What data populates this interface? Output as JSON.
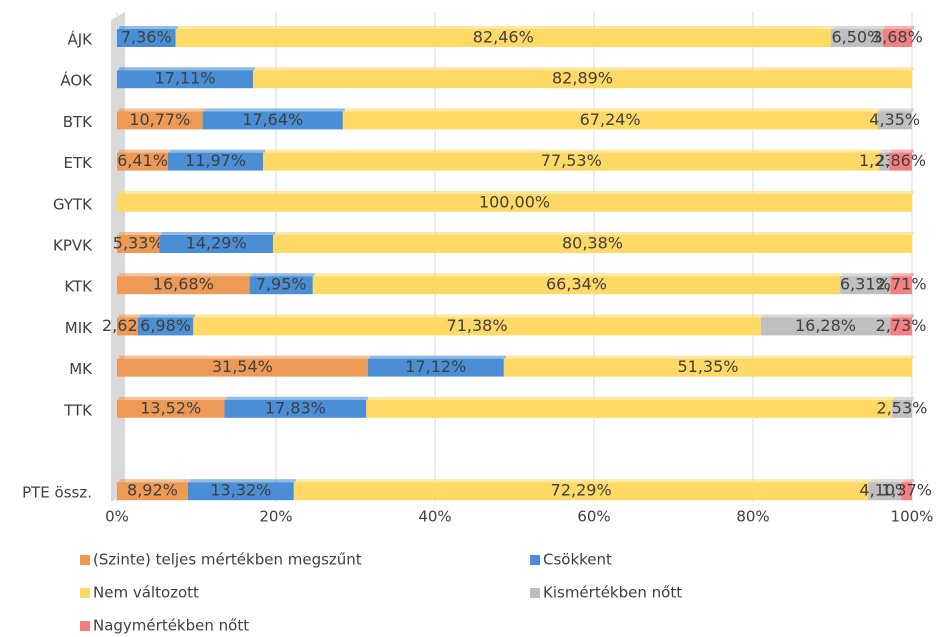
{
  "chart_data": {
    "type": "stacked_bar_horizontal",
    "categories": [
      "ÁJK",
      "ÁOK",
      "BTK",
      "ETK",
      "GYTK",
      "KPVK",
      "KTK",
      "MIK",
      "MK",
      "TTK",
      null,
      "PTE össz."
    ],
    "series": [
      {
        "name": "(Szinte) teljes mértékben megszűnt",
        "color": "#ed9a56",
        "values": [
          0,
          0,
          10.77,
          6.41,
          0,
          5.33,
          16.68,
          2.62,
          31.54,
          13.52,
          null,
          8.92
        ],
        "value_labels": [
          null,
          null,
          "10,77%",
          "6,41%",
          null,
          "5,33%",
          "16,68%",
          "2,62%",
          "31,54%",
          "13,52%",
          null,
          "8,92%"
        ]
      },
      {
        "name": "Csökkent",
        "color": "#4a8fd6",
        "values": [
          7.36,
          17.11,
          17.64,
          11.97,
          0,
          14.29,
          7.95,
          6.98,
          17.12,
          17.83,
          null,
          13.32
        ],
        "value_labels": [
          "7,36%",
          "17,11%",
          "17,64%",
          "11,97%",
          null,
          "14,29%",
          "7,95%",
          "6,98%",
          "17,12%",
          "17,83%",
          null,
          "13,32%"
        ]
      },
      {
        "name": "Nem változott",
        "color": "#ffd966",
        "values": [
          82.46,
          82.89,
          67.24,
          77.53,
          100,
          80.38,
          66.34,
          71.38,
          51.35,
          66.12,
          null,
          72.29
        ],
        "value_labels": [
          "82,46%",
          "82,89%",
          "67,24%",
          "77,53%",
          "100,00%",
          "80,38%",
          "66,34%",
          "71,38%",
          "51,35%",
          null,
          null,
          "72,29%"
        ]
      },
      {
        "name": "Kismértékben nőtt",
        "color": "#bfbfbf",
        "values": [
          6.5,
          0,
          4.35,
          1.23,
          0,
          0,
          6.31,
          16.28,
          0,
          2.53,
          null,
          4.1
        ],
        "value_labels": [
          "6,50%",
          null,
          "4,35%",
          "1,23%",
          null,
          null,
          "6,31%",
          "16,28%",
          null,
          "2,53%",
          null,
          "4,10%"
        ]
      },
      {
        "name": "Nagymértékben nőtt",
        "color": "#f28080",
        "values": [
          3.68,
          0,
          0,
          2.86,
          0,
          0,
          2.71,
          2.73,
          0,
          0,
          null,
          1.37
        ],
        "value_labels": [
          "3,68%",
          null,
          null,
          "2,86%",
          null,
          null,
          "2,71%",
          "2,73%",
          null,
          null,
          null,
          "1,37%"
        ]
      }
    ],
    "xlim": [
      0,
      100
    ],
    "xticks": [
      {
        "value": 0,
        "label": "0%"
      },
      {
        "value": 20,
        "label": "20%"
      },
      {
        "value": 40,
        "label": "40%"
      },
      {
        "value": 60,
        "label": "60%"
      },
      {
        "value": 80,
        "label": "80%"
      },
      {
        "value": 100,
        "label": "100%"
      }
    ],
    "grid": true
  }
}
